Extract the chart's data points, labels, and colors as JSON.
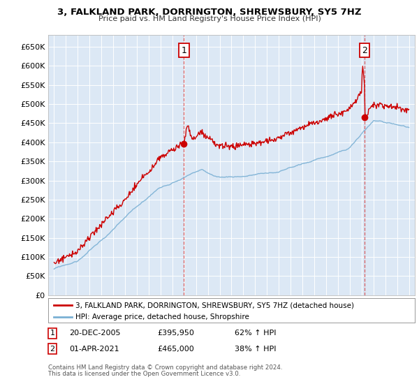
{
  "title": "3, FALKLAND PARK, DORRINGTON, SHREWSBURY, SY5 7HZ",
  "subtitle": "Price paid vs. HM Land Registry's House Price Index (HPI)",
  "ylim": [
    0,
    680000
  ],
  "yticks": [
    0,
    50000,
    100000,
    150000,
    200000,
    250000,
    300000,
    350000,
    400000,
    450000,
    500000,
    550000,
    600000,
    650000
  ],
  "ytick_labels": [
    "£0",
    "£50K",
    "£100K",
    "£150K",
    "£200K",
    "£250K",
    "£300K",
    "£350K",
    "£400K",
    "£450K",
    "£500K",
    "£550K",
    "£600K",
    "£650K"
  ],
  "background_color": "#ffffff",
  "plot_bg_color": "#dce8f5",
  "grid_color": "#ffffff",
  "legend_entries": [
    "3, FALKLAND PARK, DORRINGTON, SHREWSBURY, SY5 7HZ (detached house)",
    "HPI: Average price, detached house, Shropshire"
  ],
  "legend_colors": [
    "#cc0000",
    "#6699cc"
  ],
  "sale1_x": 2005.97,
  "sale1_y": 395950,
  "sale2_x": 2021.25,
  "sale2_y": 465000,
  "footnote1": "Contains HM Land Registry data © Crown copyright and database right 2024.",
  "footnote2": "This data is licensed under the Open Government Licence v3.0.",
  "hpi_color": "#7ab0d4",
  "price_color": "#cc0000",
  "xmin": 1994.5,
  "xmax": 2025.5
}
